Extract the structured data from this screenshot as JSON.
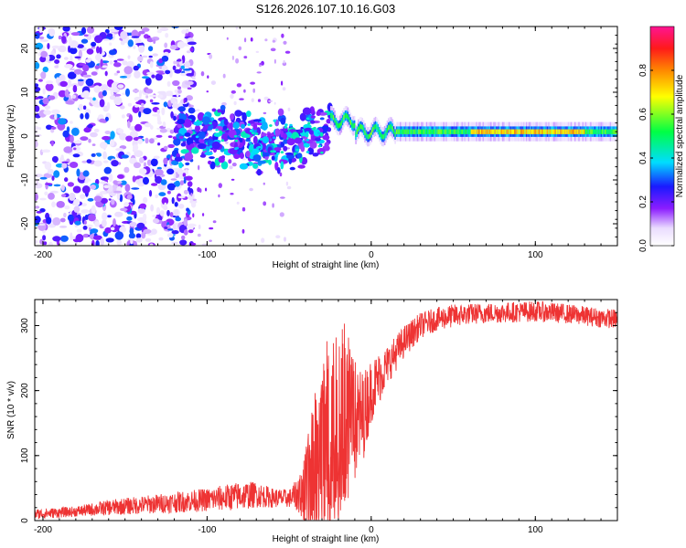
{
  "title": "S126.2026.107.10.16.G03",
  "colors": {
    "snr_line": "#ee3333",
    "axis": "#000000",
    "background": "#ffffff"
  },
  "chart_data": [
    {
      "type": "heatmap",
      "panel": "top",
      "xlabel": "Height of straight line (km)",
      "ylabel": "Frequency (Hz)",
      "xlim": [
        -205,
        150
      ],
      "ylim": [
        -25,
        25
      ],
      "xticks": [
        -200,
        -100,
        0,
        100
      ],
      "yticks": [
        -20,
        -10,
        0,
        10,
        20
      ],
      "colorbar": {
        "label": "Normalized spectral amplitude",
        "range": [
          0,
          1
        ],
        "ticks": [
          "0.0",
          "0.2",
          "0.4",
          "0.6",
          "0.8"
        ],
        "tick_values": [
          0,
          0.2,
          0.4,
          0.6,
          0.8
        ]
      },
      "description_bands": [
        {
          "x_range": [
            -205,
            -120
          ],
          "freq_range": [
            -25,
            25
          ],
          "amplitude": [
            0.05,
            0.35
          ],
          "pattern": "scattered speckle"
        },
        {
          "x_range": [
            -120,
            -25
          ],
          "freq_center": 0,
          "freq_spread": 6,
          "amplitude": [
            0.15,
            0.45
          ],
          "pattern": "clustered blobs"
        },
        {
          "x_range": [
            -25,
            150
          ],
          "freq_center": 1,
          "freq_spread": 1,
          "amplitude": [
            0.45,
            0.95
          ],
          "pattern": "narrow carrier line"
        }
      ]
    },
    {
      "type": "line",
      "panel": "bottom",
      "xlabel": "Height of straight line (km)",
      "ylabel": "SNR (10 * v/v)",
      "xlim": [
        -205,
        150
      ],
      "ylim": [
        0,
        340
      ],
      "xticks": [
        -200,
        -100,
        0,
        100
      ],
      "yticks": [
        0,
        100,
        200,
        300
      ],
      "series": [
        {
          "name": "SNR",
          "x": [
            -205,
            -180,
            -160,
            -140,
            -120,
            -100,
            -80,
            -70,
            -60,
            -50,
            -45,
            -40,
            -35,
            -30,
            -25,
            -20,
            -15,
            -10,
            -5,
            0,
            5,
            10,
            20,
            30,
            40,
            50,
            60,
            80,
            100,
            120,
            140,
            150
          ],
          "y": [
            10,
            14,
            20,
            24,
            28,
            32,
            38,
            40,
            35,
            34,
            40,
            50,
            80,
            110,
            150,
            160,
            170,
            150,
            160,
            200,
            220,
            240,
            275,
            300,
            310,
            315,
            318,
            320,
            322,
            318,
            312,
            310
          ],
          "noise": [
            8,
            8,
            12,
            14,
            16,
            18,
            22,
            20,
            15,
            14,
            25,
            60,
            110,
            140,
            160,
            160,
            150,
            100,
            70,
            50,
            40,
            30,
            25,
            20,
            18,
            18,
            16,
            16,
            16,
            15,
            15,
            15
          ]
        }
      ]
    }
  ]
}
